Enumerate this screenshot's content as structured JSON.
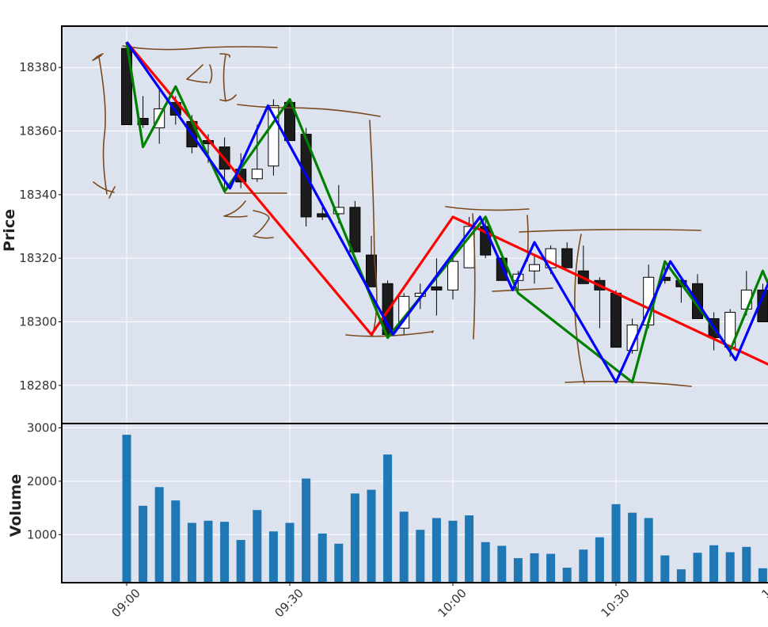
{
  "chart_data": [
    {
      "type": "candlestick",
      "ylabel": "Price",
      "ylim": [
        18268,
        18393
      ],
      "yticks": [
        18280,
        18300,
        18320,
        18340,
        18360,
        18380
      ],
      "grid": true,
      "background": "#dde2ef",
      "up_color": "#ffffff",
      "down_color": "#1c1c1c",
      "candles": [
        {
          "time": "09:00",
          "open": 18386,
          "high": 18388,
          "low": 18362,
          "close": 18362
        },
        {
          "time": "09:03",
          "open": 18364,
          "high": 18371,
          "low": 18361,
          "close": 18362
        },
        {
          "time": "09:06",
          "open": 18361,
          "high": 18373,
          "low": 18356,
          "close": 18367
        },
        {
          "time": "09:09",
          "open": 18369,
          "high": 18371,
          "low": 18362,
          "close": 18365
        },
        {
          "time": "09:12",
          "open": 18363,
          "high": 18365,
          "low": 18353,
          "close": 18355
        },
        {
          "time": "09:15",
          "open": 18357,
          "high": 18359,
          "low": 18350,
          "close": 18356
        },
        {
          "time": "09:18",
          "open": 18355,
          "high": 18358,
          "low": 18342,
          "close": 18348
        },
        {
          "time": "09:21",
          "open": 18348,
          "high": 18353,
          "low": 18342,
          "close": 18344
        },
        {
          "time": "09:24",
          "open": 18345,
          "high": 18362,
          "low": 18344,
          "close": 18348
        },
        {
          "time": "09:27",
          "open": 18349,
          "high": 18370,
          "low": 18346,
          "close": 18368
        },
        {
          "time": "09:30",
          "open": 18369,
          "high": 18370,
          "low": 18357,
          "close": 18357
        },
        {
          "time": "09:33",
          "open": 18359,
          "high": 18361,
          "low": 18330,
          "close": 18333
        },
        {
          "time": "09:36",
          "open": 18334,
          "high": 18337,
          "low": 18332,
          "close": 18333
        },
        {
          "time": "09:39",
          "open": 18334,
          "high": 18343,
          "low": 18331,
          "close": 18336
        },
        {
          "time": "09:42",
          "open": 18336,
          "high": 18338,
          "low": 18322,
          "close": 18322
        },
        {
          "time": "09:45",
          "open": 18321,
          "high": 18327,
          "low": 18311,
          "close": 18311
        },
        {
          "time": "09:48",
          "open": 18312,
          "high": 18313,
          "low": 18295,
          "close": 18296
        },
        {
          "time": "09:51",
          "open": 18298,
          "high": 18309,
          "low": 18296,
          "close": 18308
        },
        {
          "time": "09:54",
          "open": 18308,
          "high": 18312,
          "low": 18304,
          "close": 18309
        },
        {
          "time": "09:57",
          "open": 18311,
          "high": 18320,
          "low": 18302,
          "close": 18310
        },
        {
          "time": "10:00",
          "open": 18310,
          "high": 18320,
          "low": 18307,
          "close": 18319
        },
        {
          "time": "10:03",
          "open": 18317,
          "high": 18333,
          "low": 18317,
          "close": 18330
        },
        {
          "time": "10:06",
          "open": 18330,
          "high": 18332,
          "low": 18320,
          "close": 18321
        },
        {
          "time": "10:09",
          "open": 18320,
          "high": 18322,
          "low": 18313,
          "close": 18313
        },
        {
          "time": "10:12",
          "open": 18313,
          "high": 18316,
          "low": 18310,
          "close": 18315
        },
        {
          "time": "10:15",
          "open": 18316,
          "high": 18321,
          "low": 18312,
          "close": 18318
        },
        {
          "time": "10:18",
          "open": 18317,
          "high": 18324,
          "low": 18315,
          "close": 18323
        },
        {
          "time": "10:21",
          "open": 18323,
          "high": 18325,
          "low": 18317,
          "close": 18317
        },
        {
          "time": "10:24",
          "open": 18316,
          "high": 18324,
          "low": 18312,
          "close": 18312
        },
        {
          "time": "10:27",
          "open": 18313,
          "high": 18314,
          "low": 18298,
          "close": 18310
        },
        {
          "time": "10:30",
          "open": 18309,
          "high": 18310,
          "low": 18292,
          "close": 18292
        },
        {
          "time": "10:33",
          "open": 18291,
          "high": 18301,
          "low": 18290,
          "close": 18299
        },
        {
          "time": "10:36",
          "open": 18299,
          "high": 18318,
          "low": 18298,
          "close": 18314
        },
        {
          "time": "10:39",
          "open": 18314,
          "high": 18319,
          "low": 18312,
          "close": 18313
        },
        {
          "time": "10:42",
          "open": 18313,
          "high": 18314,
          "low": 18306,
          "close": 18311
        },
        {
          "time": "10:45",
          "open": 18312,
          "high": 18315,
          "low": 18301,
          "close": 18301
        },
        {
          "time": "10:48",
          "open": 18301,
          "high": 18303,
          "low": 18291,
          "close": 18295
        },
        {
          "time": "10:51",
          "open": 18292,
          "high": 18304,
          "low": 18289,
          "close": 18303
        },
        {
          "time": "10:54",
          "open": 18304,
          "high": 18316,
          "low": 18302,
          "close": 18310
        },
        {
          "time": "10:57",
          "open": 18310,
          "high": 18312,
          "low": 18300,
          "close": 18300
        }
      ],
      "overlays": [
        {
          "color": "#ff0000",
          "points": [
            [
              "09:00",
              18388
            ],
            [
              "09:45",
              18296
            ],
            [
              "10:00",
              18333
            ],
            [
              "11:00",
              18285
            ]
          ]
        },
        {
          "color": "#008000",
          "points": [
            [
              "09:00",
              18388
            ],
            [
              "09:03",
              18355
            ],
            [
              "09:09",
              18374
            ],
            [
              "09:18",
              18341
            ],
            [
              "09:30",
              18370
            ],
            [
              "09:48",
              18295
            ],
            [
              "10:06",
              18333
            ],
            [
              "10:12",
              18309
            ],
            [
              "10:33",
              18281
            ],
            [
              "10:39",
              18319
            ],
            [
              "10:51",
              18291
            ],
            [
              "10:57",
              18316
            ],
            [
              "11:00",
              18304
            ]
          ]
        },
        {
          "color": "#0000ff",
          "points": [
            [
              "09:00",
              18388
            ],
            [
              "09:19",
              18342
            ],
            [
              "09:26",
              18368
            ],
            [
              "09:49",
              18296
            ],
            [
              "10:05",
              18333
            ],
            [
              "10:11",
              18310
            ],
            [
              "10:15",
              18325
            ],
            [
              "10:30",
              18281
            ],
            [
              "10:40",
              18319
            ],
            [
              "10:52",
              18288
            ],
            [
              "10:59",
              18316
            ],
            [
              "11:00",
              18311
            ]
          ]
        }
      ],
      "annotation_color": "#7a4a1c"
    },
    {
      "type": "bar",
      "ylabel": "Volume",
      "ylim": [
        100,
        3080
      ],
      "yticks": [
        1000,
        2000,
        3000
      ],
      "grid": true,
      "bar_color": "#1f77b4",
      "x": [
        "09:00",
        "09:03",
        "09:06",
        "09:09",
        "09:12",
        "09:15",
        "09:18",
        "09:21",
        "09:24",
        "09:27",
        "09:30",
        "09:33",
        "09:36",
        "09:39",
        "09:42",
        "09:45",
        "09:48",
        "09:51",
        "09:54",
        "09:57",
        "10:00",
        "10:03",
        "10:06",
        "10:09",
        "10:12",
        "10:15",
        "10:18",
        "10:21",
        "10:24",
        "10:27",
        "10:30",
        "10:33",
        "10:36",
        "10:39",
        "10:42",
        "10:45",
        "10:48",
        "10:51",
        "10:54",
        "10:57"
      ],
      "values": [
        2870,
        1540,
        1890,
        1640,
        1220,
        1260,
        1240,
        900,
        1460,
        1060,
        1220,
        2050,
        1020,
        830,
        1770,
        1840,
        2500,
        1430,
        1090,
        1310,
        1260,
        1360,
        860,
        790,
        560,
        650,
        640,
        380,
        720,
        950,
        1570,
        1410,
        1310,
        610,
        350,
        660,
        800,
        670,
        770,
        370
      ]
    }
  ],
  "x_axis": {
    "tick_labels": [
      "09:00",
      "09:30",
      "10:00",
      "10:30"
    ],
    "cut_label": "1"
  }
}
